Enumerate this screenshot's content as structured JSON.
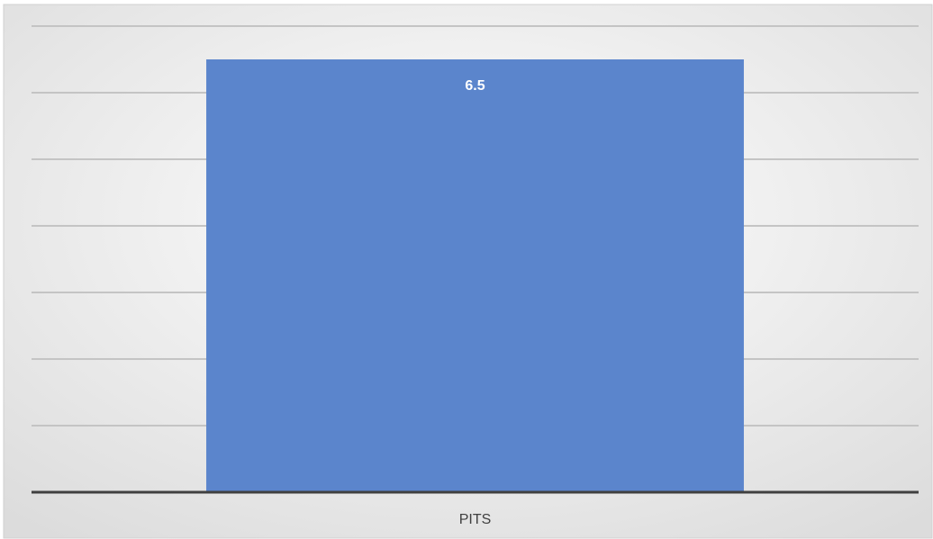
{
  "chart_data": {
    "type": "bar",
    "categories": [
      "PITS"
    ],
    "values": [
      6.5
    ],
    "color": "#5b85cc",
    "ylim": [
      0,
      7
    ],
    "yticks": [
      0,
      1,
      2,
      3,
      4,
      5,
      6,
      7
    ],
    "grid": true
  }
}
